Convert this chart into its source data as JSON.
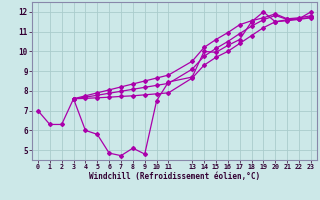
{
  "xlabel": "Windchill (Refroidissement éolien,°C)",
  "bg_color": "#cce8e8",
  "grid_color": "#aacccc",
  "line_color": "#aa00aa",
  "spine_color": "#8888aa",
  "xlim": [
    -0.5,
    23.5
  ],
  "ylim": [
    4.5,
    12.5
  ],
  "xticks": [
    0,
    1,
    2,
    3,
    4,
    5,
    6,
    7,
    8,
    9,
    10,
    11,
    13,
    14,
    15,
    16,
    17,
    18,
    19,
    20,
    21,
    22,
    23
  ],
  "yticks": [
    5,
    6,
    7,
    8,
    9,
    10,
    11,
    12
  ],
  "line1_x": [
    0,
    1,
    2,
    3,
    4,
    5,
    6,
    7,
    8,
    9,
    10,
    11,
    13,
    14,
    15,
    16,
    17,
    18,
    19,
    20,
    21,
    22,
    23
  ],
  "line1_y": [
    7.0,
    6.3,
    6.3,
    7.6,
    6.0,
    5.8,
    4.85,
    4.72,
    5.1,
    4.8,
    7.5,
    8.45,
    8.7,
    10.0,
    9.95,
    10.3,
    10.6,
    11.5,
    12.0,
    11.5,
    11.6,
    11.65,
    12.0
  ],
  "line2_x": [
    3,
    4,
    5,
    6,
    7,
    8,
    9,
    10,
    11,
    13,
    14,
    15,
    16,
    17,
    18,
    19,
    20,
    21,
    22,
    23
  ],
  "line2_y": [
    7.6,
    7.62,
    7.65,
    7.68,
    7.72,
    7.75,
    7.8,
    7.85,
    7.9,
    8.65,
    9.3,
    9.7,
    10.0,
    10.4,
    10.8,
    11.2,
    11.5,
    11.55,
    11.62,
    11.7
  ],
  "line3_x": [
    3,
    4,
    5,
    6,
    7,
    8,
    9,
    10,
    11,
    13,
    14,
    15,
    16,
    17,
    18,
    19,
    20,
    21,
    22,
    23
  ],
  "line3_y": [
    7.6,
    7.68,
    7.78,
    7.88,
    7.98,
    8.08,
    8.18,
    8.28,
    8.38,
    9.1,
    9.75,
    10.15,
    10.5,
    10.9,
    11.28,
    11.6,
    11.82,
    11.62,
    11.65,
    11.72
  ],
  "line4_x": [
    3,
    4,
    5,
    6,
    7,
    8,
    9,
    10,
    11,
    13,
    14,
    15,
    16,
    17,
    18,
    19,
    20,
    21,
    22,
    23
  ],
  "line4_y": [
    7.6,
    7.75,
    7.9,
    8.05,
    8.2,
    8.35,
    8.5,
    8.65,
    8.8,
    9.5,
    10.2,
    10.6,
    10.95,
    11.35,
    11.55,
    11.7,
    11.9,
    11.65,
    11.7,
    11.8
  ]
}
